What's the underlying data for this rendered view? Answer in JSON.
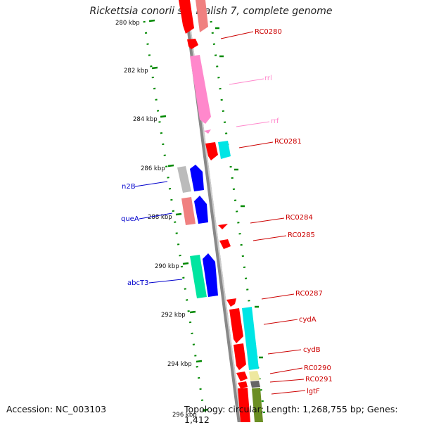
{
  "title": "Rickettsia conorii str. Malish 7, complete genome",
  "accession": "Accession: NC_003103",
  "topology": "Topology: circular; Length: 1,268,755 bp; Genes: 1,412",
  "ticks": [
    "280 kbp",
    "282 kbp",
    "284 kbp",
    "286 kbp",
    "288 kbp",
    "290 kbp",
    "292 kbp",
    "294 kbp",
    "296 kbp"
  ],
  "features": [
    {
      "label": "RC0280",
      "color": "#cc0000"
    },
    {
      "label": "rrl",
      "color": "#ff88cc"
    },
    {
      "label": "rrf",
      "color": "#ff88cc"
    },
    {
      "label": "RC0281",
      "color": "#cc0000"
    },
    {
      "label": "n2B",
      "color": "#0000cc"
    },
    {
      "label": "queA",
      "color": "#0000cc"
    },
    {
      "label": "RC0284",
      "color": "#cc0000"
    },
    {
      "label": "RC0285",
      "color": "#cc0000"
    },
    {
      "label": "abcT3",
      "color": "#0000cc"
    },
    {
      "label": "RC0287",
      "color": "#cc0000"
    },
    {
      "label": "cydA",
      "color": "#cc0000"
    },
    {
      "label": "cydB",
      "color": "#cc0000"
    },
    {
      "label": "RC0290",
      "color": "#cc0000"
    },
    {
      "label": "RC0291",
      "color": "#cc0000"
    },
    {
      "label": "lgtF",
      "color": "#cc0000"
    }
  ],
  "colors": {
    "red": "#ff0000",
    "pink": "#ff88cc",
    "salmon": "#f08080",
    "cyan": "#00e5e5",
    "blue": "#0000ff",
    "gray": "#bbbbbb",
    "teal": "#00e5a0",
    "dotted_green": "#008800",
    "backbone": "#888888"
  }
}
